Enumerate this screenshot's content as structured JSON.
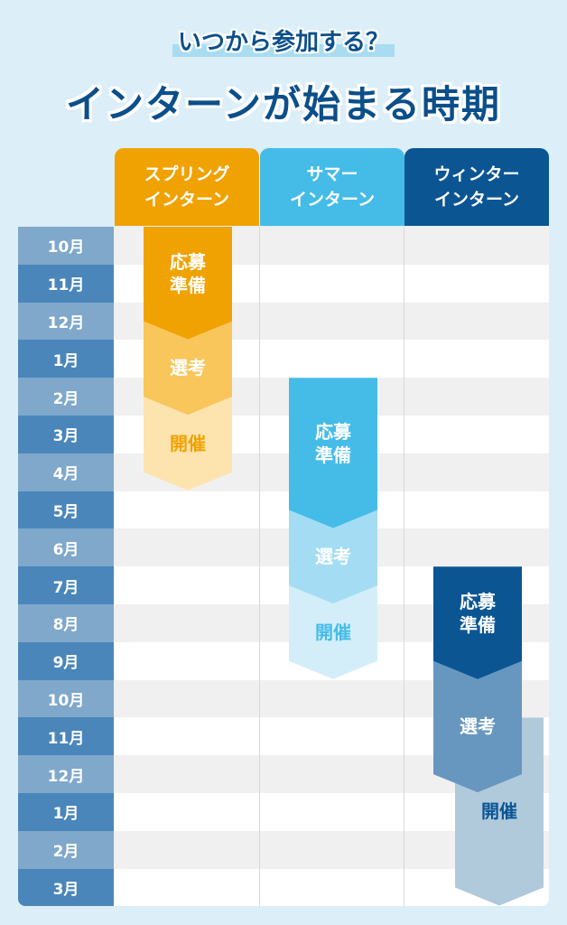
{
  "header": {
    "subtitle": "いつから参加する？",
    "title": "インターンが始まる時期"
  },
  "columns": [
    {
      "label": "スプリング\nインターン",
      "color": "#F0A202"
    },
    {
      "label": "サマー\nインターン",
      "color": "#45BCE8"
    },
    {
      "label": "ウィンター\nインターン",
      "color": "#0B5593"
    }
  ],
  "months": [
    "10月",
    "11月",
    "12月",
    "1月",
    "2月",
    "3月",
    "4月",
    "5月",
    "6月",
    "7月",
    "8月",
    "9月",
    "10月",
    "11月",
    "12月",
    "1月",
    "2月",
    "3月"
  ],
  "month_colors": [
    "#7FA8CB",
    "#4A86BA"
  ],
  "row_colors": [
    "#F0F0F0",
    "#FFFFFF"
  ],
  "phases": [
    {
      "column": 0,
      "label": "応募準備",
      "start": 0,
      "end": 2.5,
      "fill": "#F0A202",
      "text": "#FFFFFF"
    },
    {
      "column": 0,
      "label": "選考",
      "start": 2.5,
      "end": 4.5,
      "fill": "#F8C65A",
      "text": "#FFFFFF"
    },
    {
      "column": 0,
      "label": "開催",
      "start": 4.5,
      "end": 6.5,
      "fill": "#FDE3AE",
      "text": "#F0A202"
    },
    {
      "column": 1,
      "label": "応募準備",
      "start": 4,
      "end": 7.5,
      "fill": "#45BCE8",
      "text": "#FFFFFF"
    },
    {
      "column": 1,
      "label": "選考",
      "start": 7.5,
      "end": 9.5,
      "fill": "#A4DDF3",
      "text": "#FFFFFF"
    },
    {
      "column": 1,
      "label": "開催",
      "start": 9.5,
      "end": 11.5,
      "fill": "#D3EEF9",
      "text": "#45BCE8"
    },
    {
      "column": 2,
      "label": "応募準備",
      "start": 9,
      "end": 11.5,
      "fill": "#0B5593",
      "text": "#FFFFFF"
    },
    {
      "column": 2,
      "label": "選考",
      "start": 11.5,
      "end": 14.5,
      "fill": "#6797BF",
      "text": "#FFFFFF"
    },
    {
      "column": 2,
      "label": "開催",
      "start": 13,
      "end": 17.5,
      "fill": "#B0CADC",
      "text": "#0B5593",
      "offset": true
    }
  ]
}
